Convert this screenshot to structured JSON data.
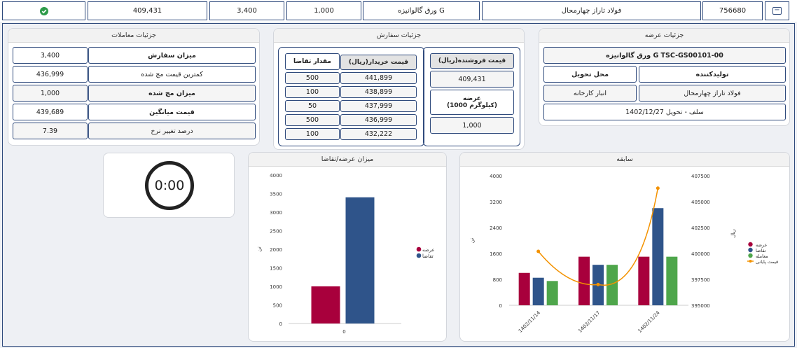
{
  "topbar": {
    "collapse_icon": "−",
    "id": "756680",
    "producer": "فولاد تاراز چهارمحال",
    "product": "ورق گالوانیزه G",
    "c1": "1,000",
    "c2": "3,400",
    "c3": "409,431",
    "status_icon": "check-circle"
  },
  "supply": {
    "title": "جزئیات عرضه",
    "product_code": "ورق گالوانیزه G TSC-GS00101-00",
    "producer_label": "تولیدکننده",
    "delivery_label": "محل تحویل",
    "producer_value": "فولاد تاراز چهارمحال",
    "delivery_value": "انبار کارخانه",
    "settlement": "سلف - تحویل 1402/12/27"
  },
  "order": {
    "title": "جزئیات سفارش",
    "seller_price_label": "قیمت فروشنده(ریال)",
    "seller_price": "409,431",
    "supply_label": "عرضه",
    "supply_unit": "(1000 کیلوگرم)",
    "supply_value": "1,000",
    "buyer_price_label": "قیمت خریدار(ریال)",
    "demand_label": "مقدار تقاضا",
    "rows": [
      {
        "price": "441,899",
        "qty": "500"
      },
      {
        "price": "438,899",
        "qty": "100"
      },
      {
        "price": "437,999",
        "qty": "50"
      },
      {
        "price": "436,999",
        "qty": "500"
      },
      {
        "price": "432,222",
        "qty": "100"
      }
    ]
  },
  "trades": {
    "title": "جزئیات معاملات",
    "rows": [
      {
        "label": "میزان سفارش",
        "value": "3,400"
      },
      {
        "label": "کمترین قیمت مچ شده",
        "value": "436,999"
      },
      {
        "label": "میزان مچ شده",
        "value": "1,000"
      },
      {
        "label": "قیمت میانگین",
        "value": "439,689"
      },
      {
        "label": "درصد تغییر نرخ",
        "value": "7.39"
      }
    ]
  },
  "timer": {
    "value": "0:00"
  },
  "chart_data": [
    {
      "type": "bar",
      "title": "میزان عرضه/تقاضا",
      "categories": [
        "0"
      ],
      "ylabel": "تن",
      "ylim": [
        0,
        4000
      ],
      "yticks": [
        "0",
        "500",
        "1000",
        "1500",
        "2000",
        "2500",
        "3000",
        "3500",
        "4000"
      ],
      "series": [
        {
          "name": "عرضه",
          "values": [
            1000
          ],
          "color": "#a8003c"
        },
        {
          "name": "تقاضا",
          "values": [
            3400
          ],
          "color": "#2f548a"
        }
      ],
      "legend": "right"
    },
    {
      "type": "bar",
      "title": "سابقه",
      "categories": [
        "1402/11/14",
        "1402/11/17",
        "1402/11/24"
      ],
      "ylabel": "تن",
      "ylim": [
        0,
        4000
      ],
      "yticks": [
        "0",
        "800",
        "1600",
        "2400",
        "3200",
        "4000"
      ],
      "y2label": "ریال",
      "y2lim": [
        395000,
        407500
      ],
      "y2ticks": [
        "395000",
        "397500",
        "400000",
        "402500",
        "405000",
        "407500"
      ],
      "series": [
        {
          "name": "عرضه",
          "values": [
            1000,
            1500,
            1500
          ],
          "color": "#a8003c"
        },
        {
          "name": "تقاضا",
          "values": [
            850,
            1250,
            3000
          ],
          "color": "#2f548a"
        },
        {
          "name": "معامله",
          "values": [
            750,
            1250,
            1500
          ],
          "color": "#4ea64b"
        },
        {
          "name": "قیمت پایانی",
          "type": "line",
          "axis": "y2",
          "values": [
            400200,
            397000,
            406300
          ],
          "color": "#f39200"
        }
      ],
      "legend": "right"
    }
  ]
}
